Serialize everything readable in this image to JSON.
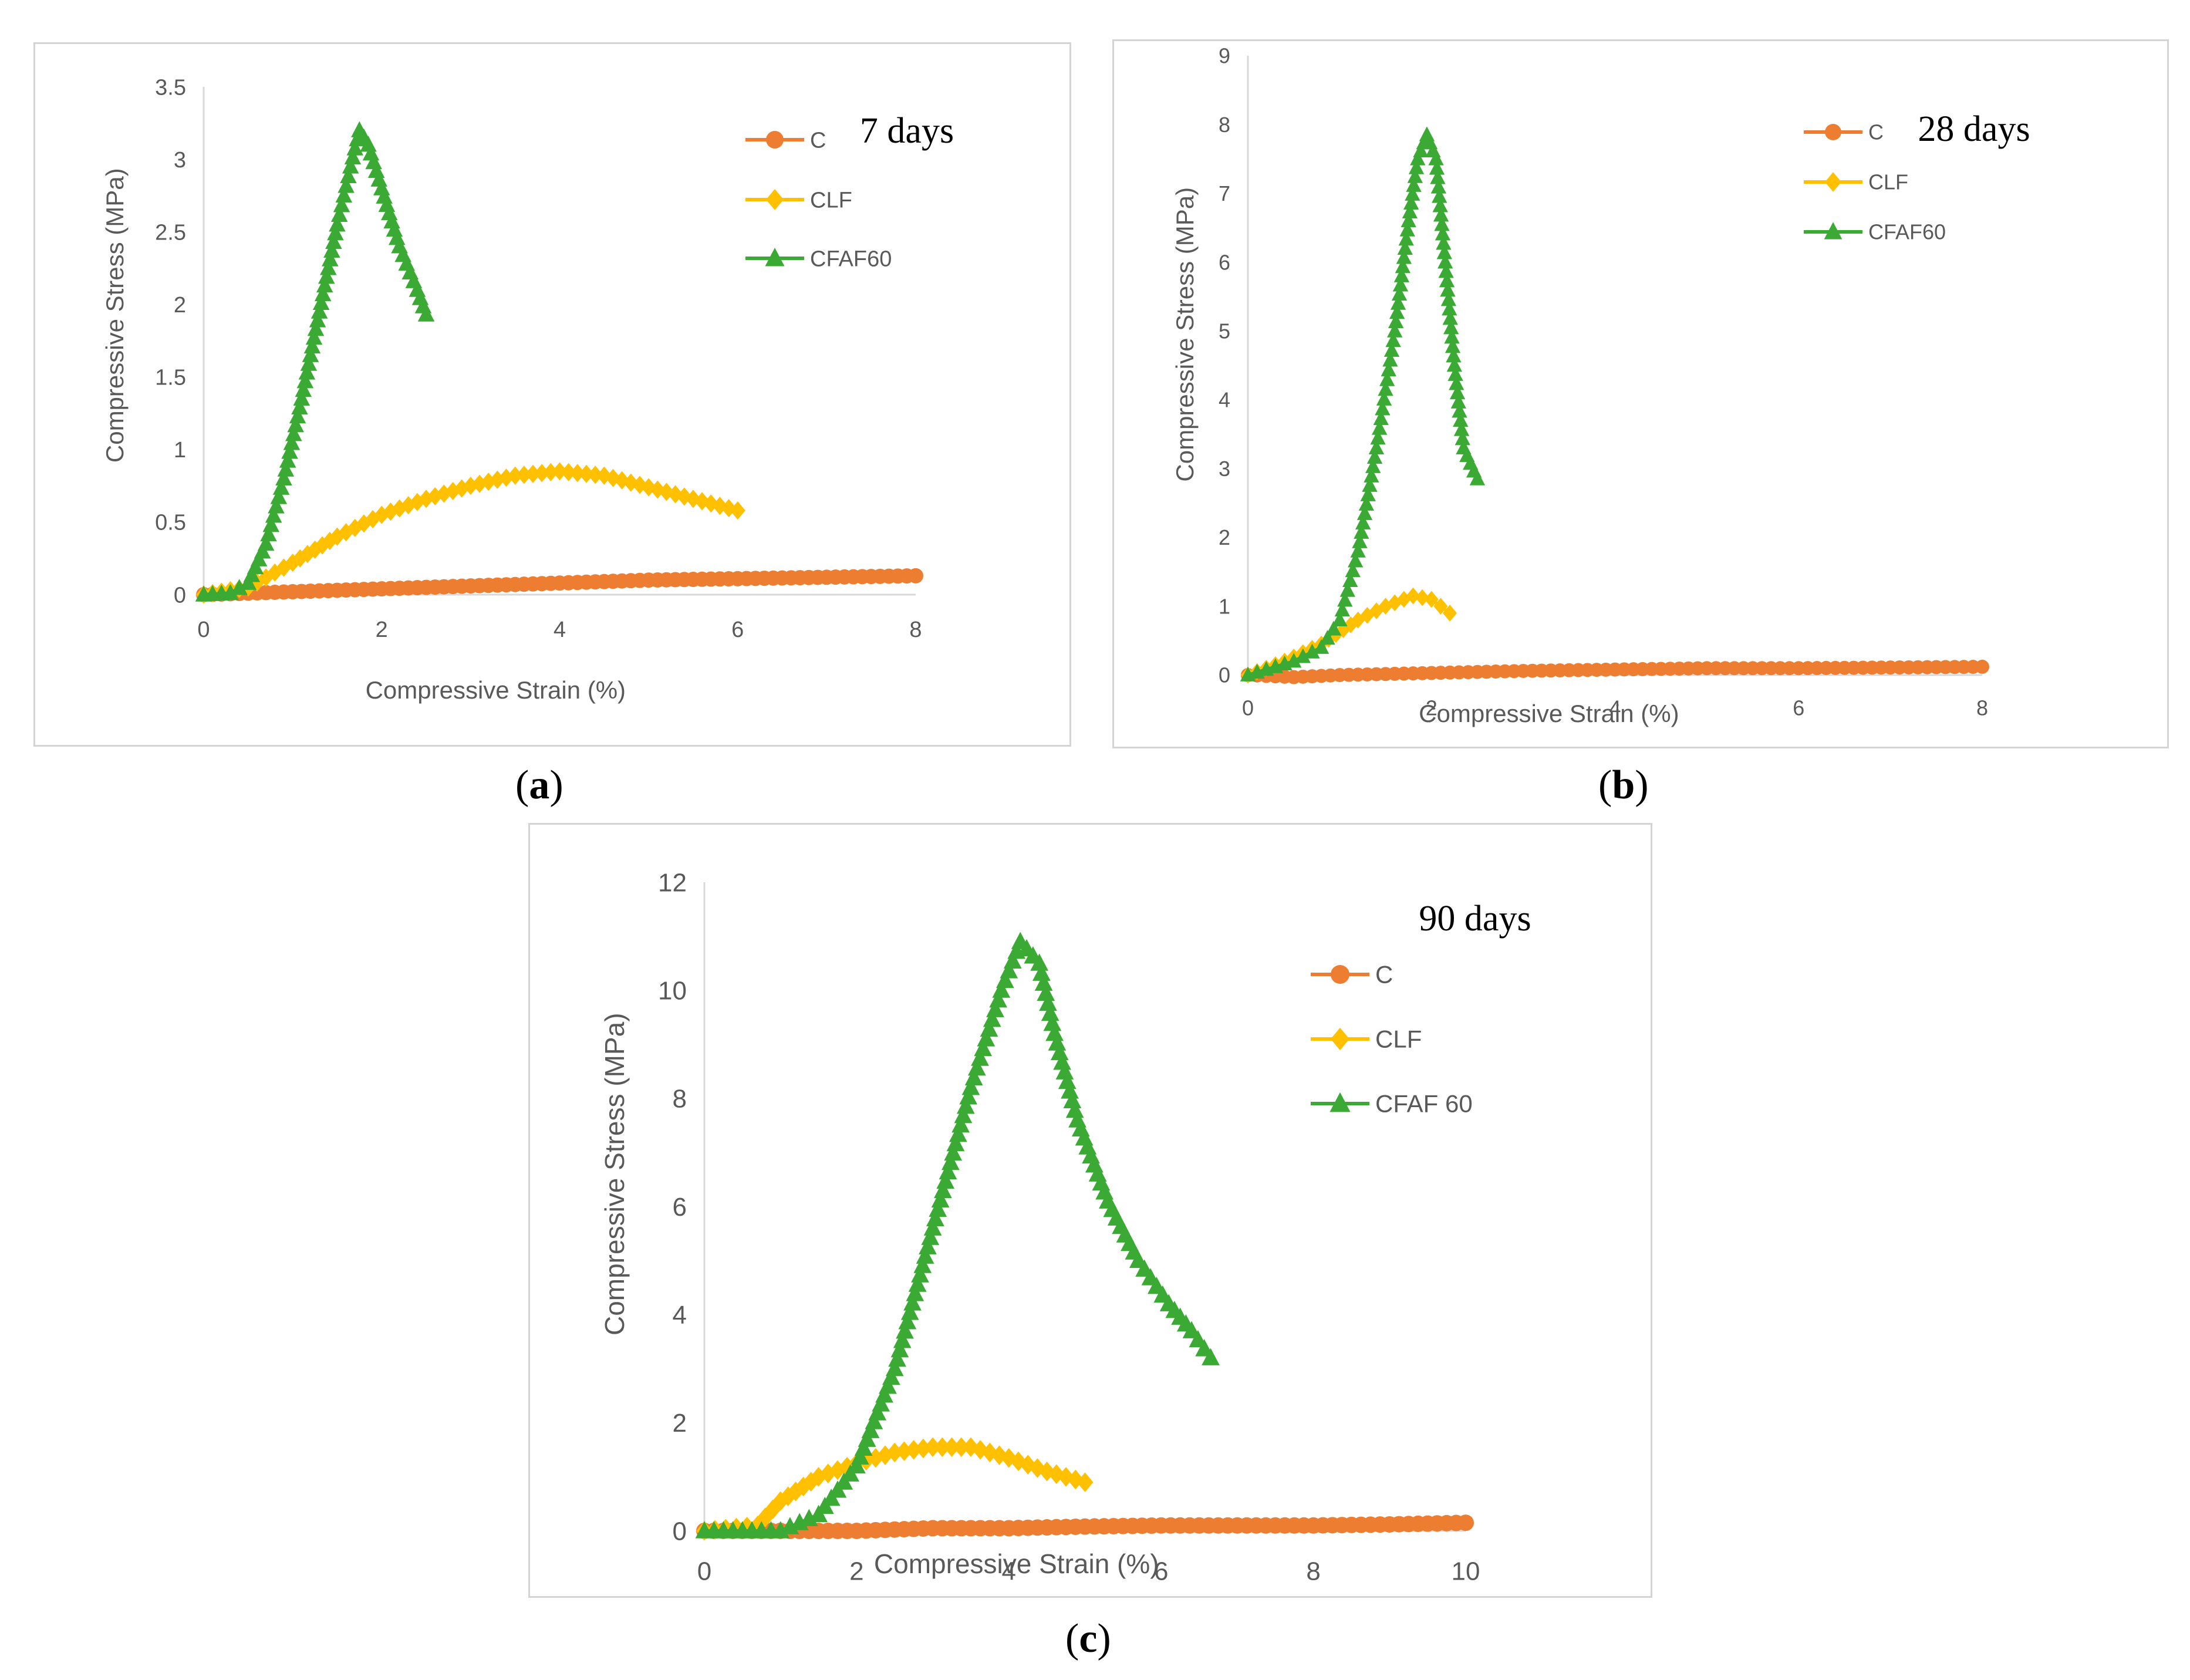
{
  "colors": {
    "C": "#ED7D31",
    "CLF": "#FFC000",
    "CFAF60": "#3BAA35",
    "axis": "#d9d9d9",
    "text": "#595959"
  },
  "chart_data": [
    {
      "id": "a",
      "type": "line",
      "caption_letter": "a",
      "annotation": "7 days",
      "xlabel": "Compressive Strain (%)",
      "ylabel": "Compressive Stress (MPa)",
      "xlim": [
        0,
        8
      ],
      "ylim": [
        0,
        3.5
      ],
      "xticks": [
        "0",
        "2",
        "4",
        "6",
        "8"
      ],
      "yticks": [
        "0",
        "0.5",
        "1",
        "1.5",
        "2",
        "2.5",
        "3",
        "3.5"
      ],
      "xtick_values": [
        0,
        2,
        4,
        6,
        8
      ],
      "ytick_values": [
        0,
        0.5,
        1,
        1.5,
        2,
        2.5,
        3,
        3.5
      ],
      "legend": [
        "C",
        "CLF",
        "CFAF60"
      ],
      "series": [
        {
          "name": "C",
          "marker": "circle",
          "points": [
            [
              0,
              0
            ],
            [
              1,
              0.02
            ],
            [
              2,
              0.04
            ],
            [
              3,
              0.06
            ],
            [
              4,
              0.08
            ],
            [
              5,
              0.1
            ],
            [
              6,
              0.11
            ],
            [
              7,
              0.12
            ],
            [
              8,
              0.13
            ]
          ]
        },
        {
          "name": "CLF",
          "marker": "diamond",
          "points": [
            [
              0,
              0
            ],
            [
              0.5,
              0.05
            ],
            [
              1,
              0.22
            ],
            [
              1.5,
              0.4
            ],
            [
              2,
              0.55
            ],
            [
              2.5,
              0.66
            ],
            [
              3,
              0.75
            ],
            [
              3.5,
              0.82
            ],
            [
              4,
              0.85
            ],
            [
              4.5,
              0.82
            ],
            [
              5,
              0.74
            ],
            [
              5.5,
              0.66
            ],
            [
              6,
              0.58
            ]
          ]
        },
        {
          "name": "CFAF60",
          "marker": "triangle",
          "points": [
            [
              0,
              0
            ],
            [
              0.3,
              0.01
            ],
            [
              0.5,
              0.08
            ],
            [
              0.7,
              0.35
            ],
            [
              0.9,
              0.8
            ],
            [
              1.1,
              1.35
            ],
            [
              1.3,
              1.95
            ],
            [
              1.5,
              2.55
            ],
            [
              1.65,
              2.95
            ],
            [
              1.75,
              3.2
            ],
            [
              1.85,
              3.1
            ],
            [
              2.0,
              2.8
            ],
            [
              2.2,
              2.4
            ],
            [
              2.4,
              2.1
            ],
            [
              2.5,
              1.93
            ]
          ]
        }
      ]
    },
    {
      "id": "b",
      "type": "line",
      "caption_letter": "b",
      "annotation": "28 days",
      "xlabel": "Compressive Strain (%)",
      "ylabel": "Compressive Stress (MPa)",
      "xlim": [
        0,
        8
      ],
      "ylim": [
        0,
        9
      ],
      "xticks": [
        "0",
        "2",
        "4",
        "6",
        "8"
      ],
      "yticks": [
        "0",
        "1",
        "2",
        "3",
        "4",
        "5",
        "6",
        "7",
        "8",
        "9"
      ],
      "xtick_values": [
        0,
        2,
        4,
        6,
        8
      ],
      "ytick_values": [
        0,
        1,
        2,
        3,
        4,
        5,
        6,
        7,
        8,
        9
      ],
      "legend": [
        "C",
        "CLF",
        "CFAF60"
      ],
      "series": [
        {
          "name": "C",
          "marker": "circle",
          "points": [
            [
              0,
              0
            ],
            [
              0.5,
              -0.03
            ],
            [
              1,
              0
            ],
            [
              2,
              0.03
            ],
            [
              3,
              0.06
            ],
            [
              4,
              0.08
            ],
            [
              5,
              0.1
            ],
            [
              6,
              0.1
            ],
            [
              7,
              0.11
            ],
            [
              8,
              0.12
            ]
          ]
        },
        {
          "name": "CLF",
          "marker": "diamond",
          "points": [
            [
              0,
              0
            ],
            [
              0.4,
              0.2
            ],
            [
              0.8,
              0.45
            ],
            [
              1.2,
              0.8
            ],
            [
              1.5,
              1.0
            ],
            [
              1.8,
              1.15
            ],
            [
              2.0,
              1.1
            ],
            [
              2.2,
              0.9
            ]
          ]
        },
        {
          "name": "CFAF60",
          "marker": "triangle",
          "points": [
            [
              0,
              0
            ],
            [
              0.5,
              0.2
            ],
            [
              0.8,
              0.4
            ],
            [
              1.0,
              0.8
            ],
            [
              1.2,
              1.8
            ],
            [
              1.4,
              3.3
            ],
            [
              1.6,
              5.0
            ],
            [
              1.75,
              6.6
            ],
            [
              1.85,
              7.5
            ],
            [
              1.95,
              7.85
            ],
            [
              2.05,
              7.5
            ],
            [
              2.15,
              6.0
            ],
            [
              2.25,
              4.5
            ],
            [
              2.35,
              3.3
            ],
            [
              2.5,
              2.85
            ]
          ]
        }
      ]
    },
    {
      "id": "c",
      "type": "line",
      "caption_letter": "c",
      "annotation": "90 days",
      "xlabel": "Compressive Strain (%)",
      "ylabel": "Compressive Stress (MPa)",
      "xlim": [
        0,
        10
      ],
      "ylim": [
        0,
        12
      ],
      "xticks": [
        "0",
        "2",
        "4",
        "6",
        "8",
        "10"
      ],
      "yticks": [
        "0",
        "2",
        "4",
        "6",
        "8",
        "10",
        "12"
      ],
      "xtick_values": [
        0,
        2,
        4,
        6,
        8,
        10
      ],
      "ytick_values": [
        0,
        2,
        4,
        6,
        8,
        10,
        12
      ],
      "legend": [
        "C",
        "CLF",
        "CFAF 60"
      ],
      "series": [
        {
          "name": "C",
          "marker": "circle",
          "points": [
            [
              0,
              0
            ],
            [
              1,
              0
            ],
            [
              2,
              0
            ],
            [
              3,
              0.05
            ],
            [
              4,
              0.05
            ],
            [
              5,
              0.08
            ],
            [
              6,
              0.1
            ],
            [
              7,
              0.1
            ],
            [
              8,
              0.1
            ],
            [
              9,
              0.12
            ],
            [
              10,
              0.15
            ]
          ]
        },
        {
          "name": "CLF",
          "marker": "diamond",
          "points": [
            [
              0,
              0
            ],
            [
              0.7,
              0.1
            ],
            [
              1.0,
              0.55
            ],
            [
              1.5,
              1.0
            ],
            [
              2.0,
              1.25
            ],
            [
              2.5,
              1.45
            ],
            [
              3.0,
              1.55
            ],
            [
              3.5,
              1.55
            ],
            [
              4.0,
              1.35
            ],
            [
              4.5,
              1.1
            ],
            [
              5.0,
              0.9
            ]
          ]
        },
        {
          "name": "CFAF 60",
          "marker": "triangle",
          "points": [
            [
              0,
              0
            ],
            [
              0.5,
              0
            ],
            [
              1.0,
              0
            ],
            [
              1.5,
              0.3
            ],
            [
              2.0,
              1.2
            ],
            [
              2.5,
              3.0
            ],
            [
              3.0,
              5.6
            ],
            [
              3.5,
              8.2
            ],
            [
              3.9,
              10.0
            ],
            [
              4.15,
              10.9
            ],
            [
              4.4,
              10.5
            ],
            [
              4.6,
              9.2
            ],
            [
              4.9,
              7.6
            ],
            [
              5.3,
              6.1
            ],
            [
              5.7,
              5.0
            ],
            [
              6.1,
              4.2
            ],
            [
              6.4,
              3.7
            ],
            [
              6.65,
              3.2
            ]
          ]
        }
      ]
    }
  ]
}
